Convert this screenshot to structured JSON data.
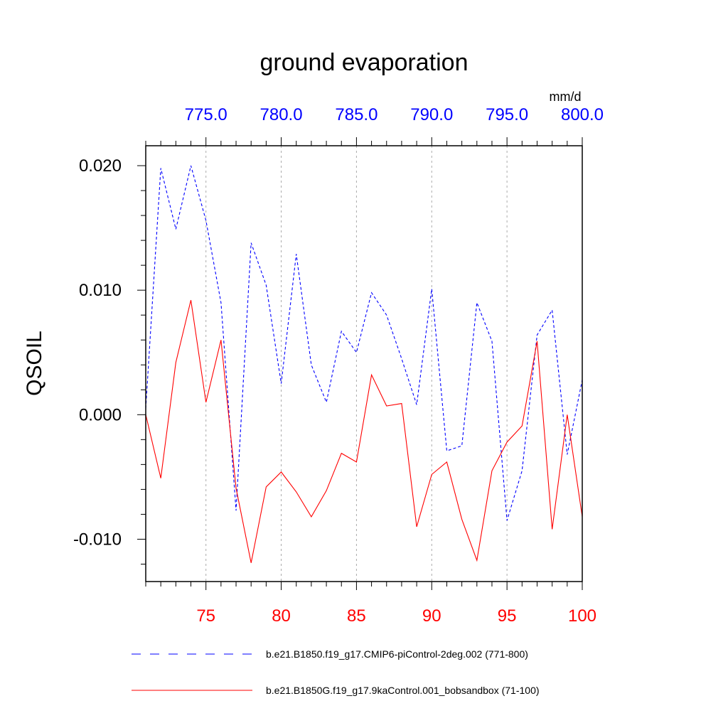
{
  "chart_data": {
    "type": "line",
    "title": "ground evaporation",
    "ylabel": "QSOIL",
    "units": "mm/d",
    "ylim": [
      -0.0134,
      0.0216
    ],
    "ytick_values": [
      0.02,
      0.01,
      0.0,
      -0.01
    ],
    "ytick_labels": [
      "0.020",
      "0.010",
      "0.000",
      "-0.010"
    ],
    "x_bottom": {
      "range": [
        71,
        100
      ],
      "tick_values": [
        75,
        80,
        85,
        90,
        95,
        100
      ],
      "tick_labels": [
        "75",
        "80",
        "85",
        "90",
        "95",
        "100"
      ],
      "color": "#ff0000"
    },
    "x_top": {
      "range": [
        771,
        800
      ],
      "tick_values": [
        775,
        780,
        785,
        790,
        795,
        800
      ],
      "tick_labels": [
        "775.0",
        "780.0",
        "785.0",
        "790.0",
        "795.0",
        "800.0"
      ],
      "color": "#0000ff"
    },
    "grid": "vertical dashed",
    "legend_position": "bottom",
    "series": [
      {
        "name": "b.e21.B1850.f19_g17.CMIP6-piControl-2deg.002 (771-800)",
        "axis": "top",
        "color": "#0000ff",
        "style": "dashed",
        "x": [
          771,
          772,
          773,
          774,
          775,
          776,
          777,
          778,
          779,
          780,
          781,
          782,
          783,
          784,
          785,
          786,
          787,
          788,
          789,
          790,
          791,
          792,
          793,
          794,
          795,
          796,
          797,
          798,
          799,
          800
        ],
        "values": [
          0.0005,
          0.0198,
          0.0149,
          0.02,
          0.0156,
          0.009,
          -0.0077,
          0.0138,
          0.0104,
          0.0025,
          0.0129,
          0.004,
          0.001,
          0.0067,
          0.005,
          0.0098,
          0.008,
          0.0045,
          0.0008,
          0.0101,
          -0.0029,
          -0.0025,
          0.009,
          0.0059,
          -0.0085,
          -0.0045,
          0.0064,
          0.0084,
          -0.0032,
          0.0028
        ]
      },
      {
        "name": "b.e21.B1850G.f19_g17.9kaControl.001_bobsandbox (71-100)",
        "axis": "bottom",
        "color": "#ff0000",
        "style": "solid",
        "x": [
          71,
          72,
          73,
          74,
          75,
          76,
          77,
          78,
          79,
          80,
          81,
          82,
          83,
          84,
          85,
          86,
          87,
          88,
          89,
          90,
          91,
          92,
          93,
          94,
          95,
          96,
          97,
          98,
          99,
          100
        ],
        "values": [
          0.0,
          -0.0051,
          0.0042,
          0.0092,
          0.001,
          0.006,
          -0.0059,
          -0.0119,
          -0.0058,
          -0.0046,
          -0.0062,
          -0.0082,
          -0.0061,
          -0.0031,
          -0.0038,
          0.0032,
          0.0007,
          0.0009,
          -0.009,
          -0.0048,
          -0.0038,
          -0.0084,
          -0.0117,
          -0.0045,
          -0.0022,
          -0.0009,
          0.0059,
          -0.0092,
          0.0,
          -0.0082
        ]
      }
    ]
  }
}
